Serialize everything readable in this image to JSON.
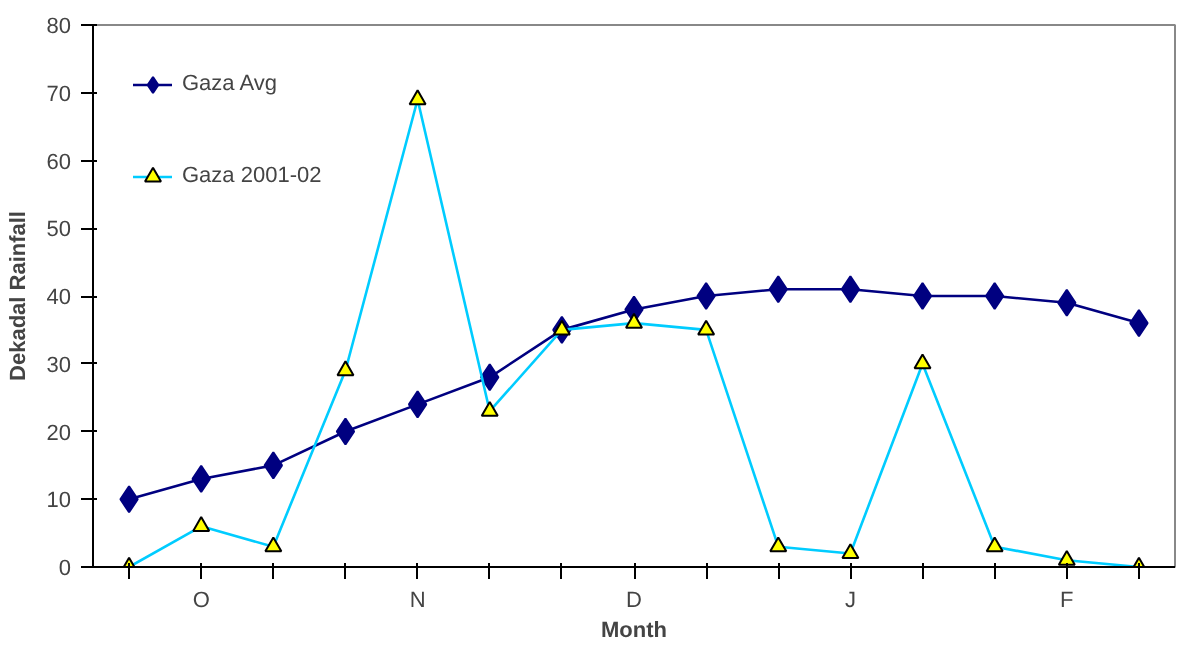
{
  "chart_data": {
    "type": "line",
    "xlabel": "Month",
    "ylabel": "Dekadal Rainfall",
    "categories": [
      null,
      "O",
      null,
      null,
      "N",
      null,
      null,
      "D",
      null,
      null,
      "J",
      null,
      null,
      "F",
      null
    ],
    "series": [
      {
        "name": "Gaza Avg",
        "color": "#000080",
        "marker": "diamond",
        "values": [
          10,
          13,
          15,
          20,
          24,
          28,
          35,
          38,
          40,
          41,
          41,
          40,
          40,
          39,
          36
        ]
      },
      {
        "name": "Gaza 2001-02",
        "color": "#00ccff",
        "marker": "triangle",
        "values": [
          0,
          6,
          3,
          29,
          69,
          23,
          35,
          36,
          35,
          3,
          2,
          30,
          3,
          1,
          0
        ]
      }
    ],
    "ylim": [
      0,
      80
    ],
    "yticks": [
      0,
      10,
      20,
      30,
      40,
      50,
      60,
      70,
      80
    ],
    "grid": false,
    "legend": "top left",
    "line_style": "solid"
  }
}
